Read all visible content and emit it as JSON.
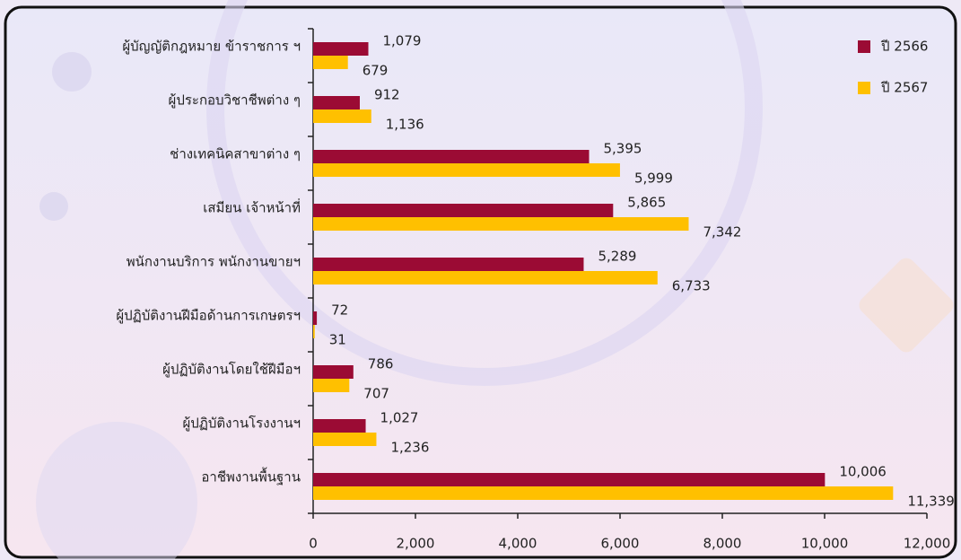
{
  "chart_data": {
    "type": "bar",
    "orientation": "horizontal",
    "categories": [
      "ผู้บัญญัติกฎหมาย ข้าราชการ ฯ",
      "ผู้ประกอบวิชาชีพต่าง ๆ",
      "ช่างเทคนิคสาขาต่าง ๆ",
      "เสมียน เจ้าหน้าที่",
      "พนักงานบริการ พนักงานขายฯ",
      "ผู้ปฏิบัติงานฝีมือด้านการเกษตรฯ",
      "ผู้ปฏิบัติงานโดยใช้ฝีมือฯ",
      "ผู้ปฏิบัติงานโรงงานฯ",
      "อาชีพงานพื้นฐาน"
    ],
    "series": [
      {
        "name": "ปี 2566",
        "color": "#9b0b34",
        "values": [
          1079,
          912,
          5395,
          5865,
          5289,
          72,
          786,
          1027,
          10006
        ],
        "value_labels": [
          "1,079",
          "912",
          "5,395",
          "5,865",
          "5,289",
          "72",
          "786",
          "1,027",
          "10,006"
        ]
      },
      {
        "name": "ปี 2567",
        "color": "#ffc000",
        "values": [
          679,
          1136,
          5999,
          7342,
          6733,
          31,
          707,
          1236,
          11339
        ],
        "value_labels": [
          "679",
          "1,136",
          "5,999",
          "7,342",
          "6,733",
          "31",
          "707",
          "1,236",
          "11,339"
        ]
      }
    ],
    "xlim": [
      0,
      12000
    ],
    "xticks": [
      0,
      {
        "value": 2000,
        "label": "2,000"
      },
      {
        "value": 4000,
        "label": "4,000"
      },
      {
        "value": 6000,
        "label": "6,000"
      },
      {
        "value": 8000,
        "label": "8,000"
      },
      {
        "value": 10000,
        "label": "10,000"
      },
      {
        "value": 12000,
        "label": "12,000"
      }
    ],
    "legend": "top-right",
    "grid": false
  }
}
